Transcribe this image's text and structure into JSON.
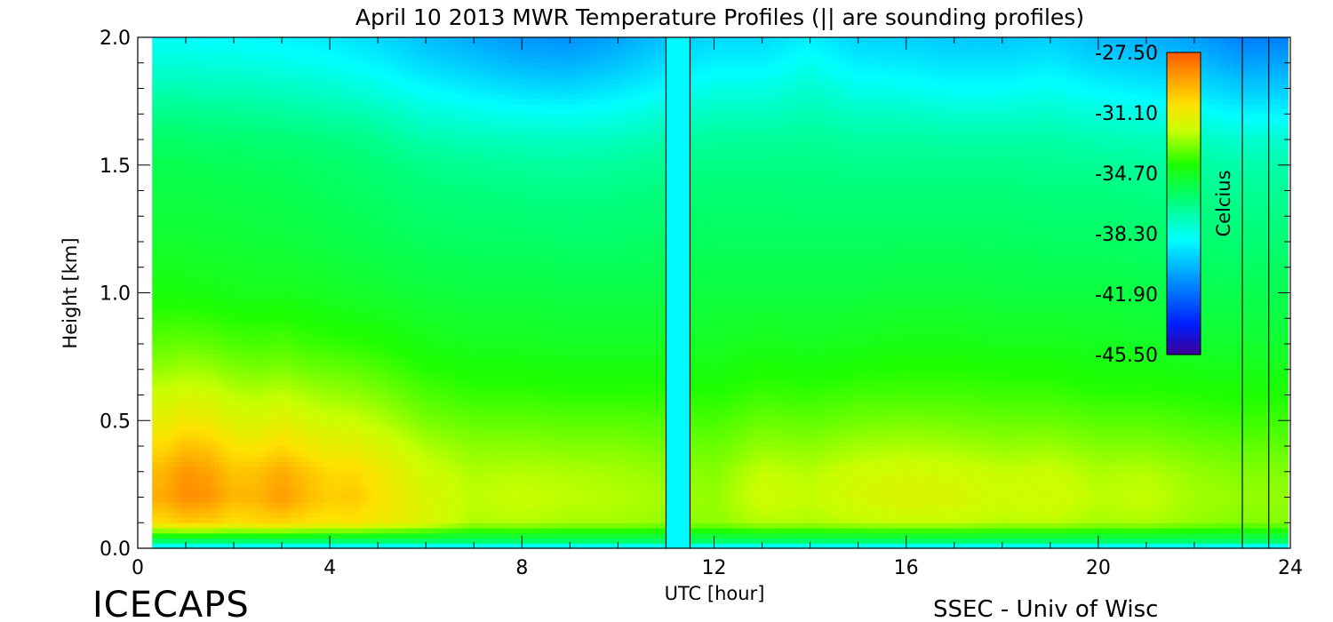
{
  "chart_data": {
    "type": "heatmap",
    "title": "April 10 2013 MWR Temperature Profiles (|| are sounding profiles)",
    "xlabel": "UTC [hour]",
    "ylabel": "Height [km]",
    "xlim": [
      0,
      24
    ],
    "ylim": [
      0,
      2.0
    ],
    "x_ticks": [
      "0",
      "4",
      "8",
      "12",
      "16",
      "20",
      "24"
    ],
    "y_ticks": [
      "0.0",
      "0.5",
      "1.0",
      "1.5",
      "2.0"
    ],
    "colorbar": {
      "label": "Celcius",
      "min": -45.5,
      "max": -27.5,
      "ticks": [
        "-27.50",
        "-31.10",
        "-34.70",
        "-38.30",
        "-41.90",
        "-45.50"
      ]
    },
    "data_start_hour": 0.3,
    "data_end_hour": 23.95,
    "gap_hours": [
      11.0,
      11.5
    ],
    "sounding_lines_hours": [
      11.0,
      11.5,
      23.0,
      23.55
    ],
    "times_hours": [
      0.5,
      1.0,
      1.5,
      2.0,
      2.5,
      3.0,
      3.5,
      4.0,
      4.5,
      5.0,
      6.0,
      7.0,
      8.0,
      9.0,
      10.0,
      11.0,
      12.0,
      13.0,
      14.0,
      15.0,
      16.0,
      17.0,
      18.0,
      19.0,
      20.0,
      21.0,
      22.0,
      23.0,
      23.9
    ],
    "heights_km": [
      0.0,
      0.03,
      0.1,
      0.2,
      0.3,
      0.4,
      0.5,
      0.6,
      0.7,
      0.8,
      1.0,
      1.2,
      1.4,
      1.5,
      1.6,
      1.7,
      1.8,
      1.9,
      2.0
    ],
    "temperature_profiles_celsius": [
      [
        -39.5,
        -36.0,
        -30.5,
        -29.3,
        -29.6,
        -30.4,
        -31.3,
        -32.0,
        -32.8,
        -33.4,
        -34.4,
        -35.0,
        -35.4,
        -35.6,
        -36.0,
        -36.6,
        -37.3,
        -38.0,
        -38.6
      ],
      [
        -39.5,
        -36.0,
        -30.1,
        -28.6,
        -28.8,
        -29.8,
        -30.9,
        -31.8,
        -32.6,
        -33.3,
        -34.4,
        -35.0,
        -35.4,
        -35.6,
        -36.0,
        -36.6,
        -37.3,
        -38.0,
        -38.6
      ],
      [
        -39.5,
        -36.0,
        -30.2,
        -28.8,
        -29.1,
        -30.0,
        -31.1,
        -31.9,
        -32.7,
        -33.4,
        -34.5,
        -35.1,
        -35.4,
        -35.7,
        -36.1,
        -36.7,
        -37.4,
        -38.1,
        -38.7
      ],
      [
        -39.5,
        -36.0,
        -30.6,
        -29.6,
        -29.9,
        -30.7,
        -31.6,
        -32.3,
        -33.0,
        -33.6,
        -34.6,
        -35.1,
        -35.5,
        -35.7,
        -36.1,
        -36.7,
        -37.4,
        -38.1,
        -38.7
      ],
      [
        -39.5,
        -36.0,
        -30.4,
        -29.5,
        -29.8,
        -30.8,
        -31.7,
        -32.4,
        -33.1,
        -33.7,
        -34.6,
        -35.2,
        -35.5,
        -35.8,
        -36.2,
        -36.8,
        -37.5,
        -38.2,
        -38.8
      ],
      [
        -39.5,
        -36.0,
        -30.3,
        -28.9,
        -29.3,
        -30.4,
        -31.4,
        -32.2,
        -33.0,
        -33.6,
        -34.6,
        -35.2,
        -35.6,
        -35.8,
        -36.2,
        -36.9,
        -37.6,
        -38.3,
        -38.9
      ],
      [
        -39.5,
        -36.0,
        -30.6,
        -29.6,
        -29.9,
        -30.9,
        -31.8,
        -32.5,
        -33.2,
        -33.8,
        -34.7,
        -35.3,
        -35.7,
        -35.9,
        -36.3,
        -37.0,
        -37.7,
        -38.4,
        -39.0
      ],
      [
        -39.5,
        -36.0,
        -30.8,
        -30.1,
        -30.4,
        -31.2,
        -32.0,
        -32.7,
        -33.3,
        -33.9,
        -34.8,
        -35.4,
        -35.8,
        -36.0,
        -36.4,
        -37.1,
        -37.8,
        -38.5,
        -39.1
      ],
      [
        -39.5,
        -36.0,
        -30.7,
        -30.0,
        -30.4,
        -31.3,
        -32.1,
        -32.8,
        -33.4,
        -34.0,
        -34.9,
        -35.5,
        -35.9,
        -36.1,
        -36.5,
        -37.2,
        -38.0,
        -38.7,
        -39.3
      ],
      [
        -39.5,
        -36.0,
        -31.0,
        -30.6,
        -30.9,
        -31.6,
        -32.4,
        -33.0,
        -33.6,
        -34.1,
        -35.0,
        -35.6,
        -36.0,
        -36.3,
        -36.7,
        -37.4,
        -38.2,
        -38.9,
        -39.5
      ],
      [
        -39.5,
        -36.0,
        -31.6,
        -31.7,
        -32.0,
        -32.5,
        -33.1,
        -33.6,
        -34.1,
        -34.5,
        -35.2,
        -35.8,
        -36.3,
        -36.6,
        -37.2,
        -37.9,
        -38.7,
        -39.5,
        -40.1
      ],
      [
        -39.5,
        -36.0,
        -32.5,
        -32.3,
        -32.5,
        -32.9,
        -33.4,
        -33.9,
        -34.3,
        -34.7,
        -35.3,
        -35.9,
        -36.4,
        -36.8,
        -37.4,
        -38.2,
        -39.1,
        -39.9,
        -40.6
      ],
      [
        -39.5,
        -36.0,
        -32.4,
        -32.1,
        -32.4,
        -32.9,
        -33.4,
        -33.9,
        -34.3,
        -34.7,
        -35.3,
        -35.9,
        -36.5,
        -36.9,
        -37.5,
        -38.4,
        -39.4,
        -40.3,
        -41.0
      ],
      [
        -39.5,
        -36.0,
        -32.6,
        -32.3,
        -32.5,
        -33.0,
        -33.5,
        -34.0,
        -34.4,
        -34.8,
        -35.4,
        -36.0,
        -36.6,
        -37.0,
        -37.6,
        -38.5,
        -39.5,
        -40.4,
        -41.1
      ],
      [
        -39.5,
        -36.0,
        -32.6,
        -32.4,
        -32.6,
        -33.0,
        -33.5,
        -34.0,
        -34.4,
        -34.8,
        -35.4,
        -36.0,
        -36.5,
        -36.9,
        -37.5,
        -38.3,
        -39.2,
        -40.0,
        -40.7
      ],
      [
        -39.5,
        -36.0,
        -32.8,
        -32.6,
        -32.8,
        -33.2,
        -33.6,
        -34.0,
        -34.4,
        -34.8,
        -35.4,
        -35.9,
        -36.4,
        -36.7,
        -37.2,
        -37.9,
        -38.7,
        -39.4,
        -40.0
      ],
      [
        -39.5,
        -36.0,
        -32.9,
        -32.8,
        -33.0,
        -33.3,
        -33.7,
        -34.1,
        -34.5,
        -34.8,
        -35.3,
        -35.8,
        -36.2,
        -36.5,
        -36.9,
        -37.5,
        -38.2,
        -38.9,
        -39.5
      ],
      [
        -39.5,
        -36.0,
        -32.4,
        -32.0,
        -32.2,
        -32.8,
        -33.3,
        -33.8,
        -34.2,
        -34.6,
        -35.3,
        -35.8,
        -36.2,
        -36.5,
        -36.9,
        -37.5,
        -38.2,
        -38.9,
        -39.5
      ],
      [
        -39.5,
        -36.0,
        -32.5,
        -32.2,
        -32.4,
        -32.9,
        -33.4,
        -33.9,
        -34.3,
        -34.7,
        -35.3,
        -35.8,
        -36.3,
        -36.5,
        -36.8,
        -37.3,
        -37.8,
        -38.4,
        -39.0
      ],
      [
        -39.5,
        -36.0,
        -32.3,
        -31.8,
        -32.0,
        -32.6,
        -33.2,
        -33.7,
        -34.2,
        -34.6,
        -35.3,
        -35.8,
        -36.3,
        -36.6,
        -37.0,
        -37.6,
        -38.3,
        -39.0,
        -39.6
      ],
      [
        -39.5,
        -36.0,
        -32.2,
        -31.6,
        -31.9,
        -32.5,
        -33.1,
        -33.7,
        -34.1,
        -34.5,
        -35.2,
        -35.8,
        -36.3,
        -36.6,
        -37.0,
        -37.6,
        -38.4,
        -39.1,
        -39.7
      ],
      [
        -39.5,
        -36.0,
        -32.2,
        -31.7,
        -32.0,
        -32.6,
        -33.2,
        -33.7,
        -34.1,
        -34.5,
        -35.2,
        -35.8,
        -36.3,
        -36.6,
        -37.1,
        -37.8,
        -38.6,
        -39.3,
        -39.9
      ],
      [
        -39.5,
        -36.0,
        -32.4,
        -32.0,
        -32.2,
        -32.8,
        -33.3,
        -33.8,
        -34.2,
        -34.6,
        -35.3,
        -35.8,
        -36.3,
        -36.6,
        -37.1,
        -37.8,
        -38.6,
        -39.3,
        -39.9
      ],
      [
        -39.5,
        -36.0,
        -32.3,
        -31.9,
        -32.1,
        -32.7,
        -33.3,
        -33.8,
        -34.2,
        -34.6,
        -35.3,
        -35.9,
        -36.4,
        -36.7,
        -37.1,
        -37.7,
        -38.4,
        -39.1,
        -39.7
      ],
      [
        -39.5,
        -36.0,
        -32.6,
        -32.3,
        -32.5,
        -33.0,
        -33.5,
        -34.0,
        -34.4,
        -34.7,
        -35.3,
        -35.9,
        -36.4,
        -36.8,
        -37.3,
        -38.0,
        -38.8,
        -39.6,
        -40.2
      ],
      [
        -39.5,
        -36.0,
        -32.5,
        -32.2,
        -32.4,
        -33.0,
        -33.5,
        -34.0,
        -34.4,
        -34.8,
        -35.4,
        -36.0,
        -36.5,
        -36.9,
        -37.4,
        -38.2,
        -39.0,
        -39.8,
        -40.4
      ],
      [
        -39.5,
        -36.0,
        -32.8,
        -32.6,
        -32.8,
        -33.2,
        -33.7,
        -34.1,
        -34.5,
        -34.9,
        -35.5,
        -36.1,
        -36.6,
        -37.0,
        -37.5,
        -38.4,
        -39.3,
        -40.1,
        -40.8
      ],
      [
        -39.5,
        -36.0,
        -33.0,
        -32.8,
        -33.0,
        -33.4,
        -33.8,
        -34.2,
        -34.6,
        -35.0,
        -35.6,
        -36.2,
        -36.8,
        -37.2,
        -37.8,
        -38.8,
        -39.8,
        -40.7,
        -41.5
      ],
      [
        -39.5,
        -36.0,
        -33.0,
        -32.8,
        -33.0,
        -33.4,
        -33.8,
        -34.2,
        -34.6,
        -35.0,
        -35.6,
        -36.2,
        -36.8,
        -37.2,
        -37.8,
        -38.8,
        -39.8,
        -40.7,
        -41.5
      ]
    ]
  },
  "footer": {
    "left": "ICECAPS",
    "right": "SSEC - Univ of Wisc"
  }
}
